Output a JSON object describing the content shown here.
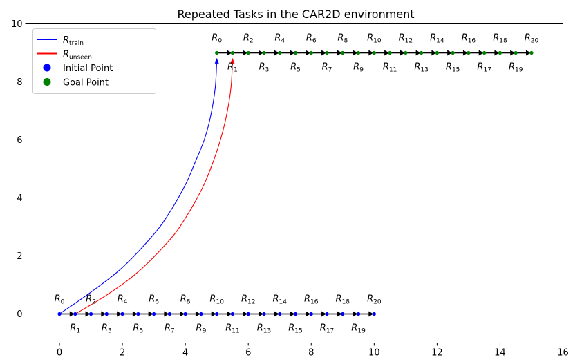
{
  "chart_data": {
    "type": "line",
    "title": "Repeated Tasks in the CAR2D environment",
    "xlabel": "",
    "ylabel": "",
    "xlim": [
      -1,
      16
    ],
    "ylim": [
      -1,
      10
    ],
    "xticks": [
      0,
      2,
      4,
      6,
      8,
      10,
      12,
      14,
      16
    ],
    "yticks": [
      0,
      2,
      4,
      6,
      8,
      10
    ],
    "grid": false,
    "legend": {
      "placement": "top-left",
      "entries": [
        {
          "kind": "line",
          "main": "R",
          "sub": "train",
          "color": "#0000ff"
        },
        {
          "kind": "line",
          "main": "R",
          "sub": "unseen",
          "color": "#ff0000"
        },
        {
          "kind": "marker",
          "text": "Initial Point",
          "color": "#0000ff"
        },
        {
          "kind": "marker",
          "text": "Goal Point",
          "color": "#008000"
        }
      ]
    },
    "series": [
      {
        "name": "R_train",
        "color": "#0000ff",
        "x": [
          0,
          1,
          2,
          3,
          3.5,
          4,
          4.3,
          4.6,
          4.8,
          4.95,
          5.0
        ],
        "y": [
          0,
          0.75,
          1.6,
          2.75,
          3.5,
          4.45,
          5.2,
          6.0,
          6.8,
          7.8,
          8.8
        ]
      },
      {
        "name": "R_unseen",
        "color": "#ff0000",
        "x": [
          0.5,
          1.5,
          2.5,
          3.5,
          4.0,
          4.5,
          4.8,
          5.1,
          5.3,
          5.45,
          5.5
        ],
        "y": [
          0,
          0.65,
          1.45,
          2.55,
          3.3,
          4.25,
          5.0,
          5.95,
          6.8,
          7.8,
          8.8
        ]
      }
    ],
    "initial_points": {
      "y": 0,
      "x": [
        0,
        0.5,
        1,
        1.5,
        2,
        2.5,
        3,
        3.5,
        4,
        4.5,
        5,
        5.5,
        6,
        6.5,
        7,
        7.5,
        8,
        8.5,
        9,
        9.5,
        10
      ]
    },
    "goal_points": {
      "y": 9,
      "x": [
        5,
        5.5,
        6,
        6.5,
        7,
        7.5,
        8,
        8.5,
        9,
        9.5,
        10,
        10.5,
        11,
        11.5,
        12,
        12.5,
        13,
        13.5,
        14,
        14.5,
        15
      ]
    },
    "task_labels": [
      "0",
      "1",
      "2",
      "3",
      "4",
      "5",
      "6",
      "7",
      "8",
      "9",
      "10",
      "11",
      "12",
      "13",
      "14",
      "15",
      "16",
      "17",
      "18",
      "19",
      "20"
    ]
  }
}
